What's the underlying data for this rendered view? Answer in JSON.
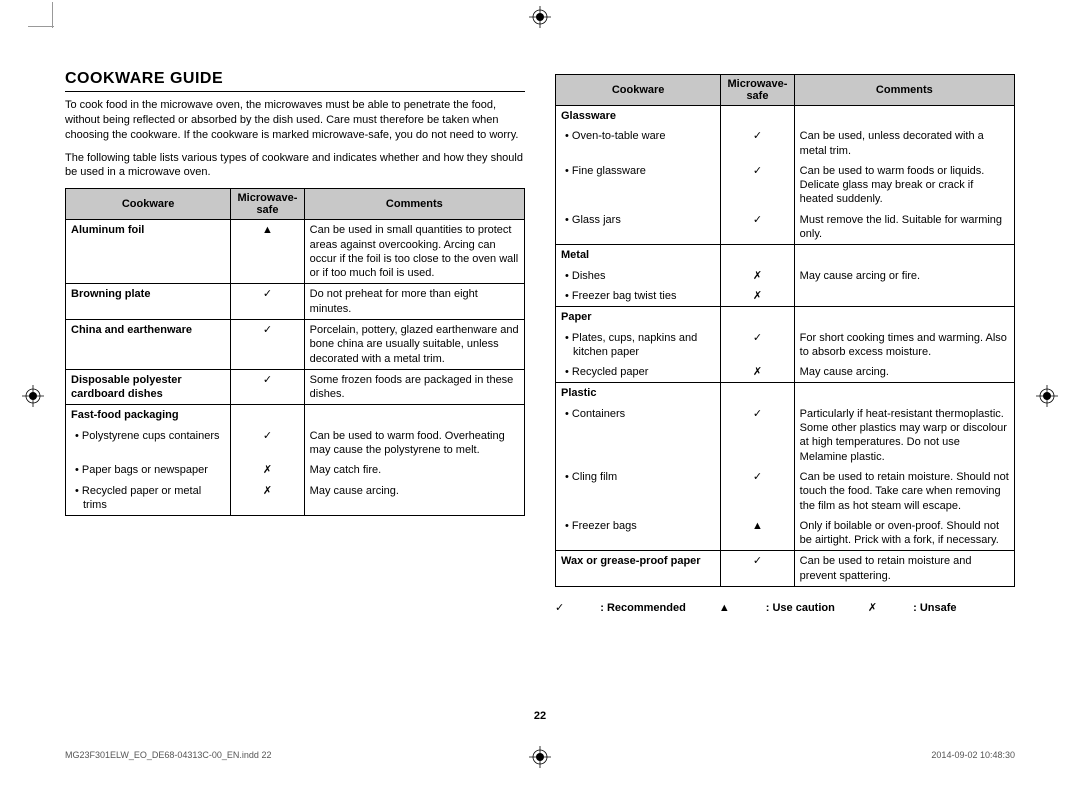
{
  "title": "COOKWARE GUIDE",
  "intro1": "To cook food in the microwave oven, the microwaves must be able to penetrate the food, without being reflected or absorbed by the dish used. Care must therefore be taken when choosing the cookware. If the cookware is marked microwave-safe, you do not need to worry.",
  "intro2": "The following table lists various types of cookware and indicates whether and how they should be used in a microwave oven.",
  "headers": {
    "c1": "Cookware",
    "c2": "Microwave-safe",
    "c3": "Comments"
  },
  "symbols": {
    "rec": "✓",
    "caution": "▲",
    "unsafe": "✗"
  },
  "legend": {
    "rec": ": Recommended",
    "caution": ": Use caution",
    "unsafe": ": Unsafe"
  },
  "left_rows": [
    {
      "name": "Aluminum foil",
      "safe": "▲",
      "comment": "Can be used in small quantities to protect areas against overcooking. Arcing can occur if the foil is too close to the oven wall or if too much foil is used.",
      "bold": true
    },
    {
      "name": "Browning plate",
      "safe": "✓",
      "comment": "Do not preheat for more than eight minutes.",
      "bold": true
    },
    {
      "name": "China and earthenware",
      "safe": "✓",
      "comment": "Porcelain, pottery, glazed earthenware and bone china are usually suitable, unless decorated with a metal trim.",
      "bold": true
    },
    {
      "name": "Disposable polyester cardboard dishes",
      "safe": "✓",
      "comment": "Some frozen foods are packaged in these dishes.",
      "bold": true
    },
    {
      "name": "Fast-food packaging",
      "safe": "",
      "comment": "",
      "bold": true,
      "header": true
    },
    {
      "name": "Polystyrene cups containers",
      "safe": "✓",
      "comment": "Can be used to warm food. Overheating may cause the polystyrene to melt.",
      "sub": true
    },
    {
      "name": "Paper bags or newspaper",
      "safe": "✗",
      "comment": "May catch fire.",
      "sub": true
    },
    {
      "name": "Recycled paper or metal trims",
      "safe": "✗",
      "comment": "May cause arcing.",
      "sub": true
    }
  ],
  "right_rows": [
    {
      "name": "Glassware",
      "safe": "",
      "comment": "",
      "bold": true,
      "header": true
    },
    {
      "name": "Oven-to-table ware",
      "safe": "✓",
      "comment": "Can be used, unless decorated with a metal trim.",
      "sub": true
    },
    {
      "name": "Fine glassware",
      "safe": "✓",
      "comment": "Can be used to warm foods or liquids. Delicate glass may break or crack if heated suddenly.",
      "sub": true
    },
    {
      "name": "Glass jars",
      "safe": "✓",
      "comment": "Must remove the lid. Suitable for warming only.",
      "sub": true
    },
    {
      "name": "Metal",
      "safe": "",
      "comment": "",
      "bold": true,
      "header": true
    },
    {
      "name": "Dishes",
      "safe": "✗",
      "comment": "May cause arcing or fire.",
      "sub": true
    },
    {
      "name": "Freezer bag twist ties",
      "safe": "✗",
      "comment": "",
      "sub": true
    },
    {
      "name": "Paper",
      "safe": "",
      "comment": "",
      "bold": true,
      "header": true
    },
    {
      "name": "Plates, cups, napkins and kitchen paper",
      "safe": "✓",
      "comment": "For short cooking times and warming. Also to absorb excess moisture.",
      "sub": true
    },
    {
      "name": "Recycled paper",
      "safe": "✗",
      "comment": "May cause arcing.",
      "sub": true
    },
    {
      "name": "Plastic",
      "safe": "",
      "comment": "",
      "bold": true,
      "header": true
    },
    {
      "name": "Containers",
      "safe": "✓",
      "comment": "Particularly if heat-resistant thermoplastic. Some other plastics may warp or discolour at high temperatures. Do not use Melamine plastic.",
      "sub": true
    },
    {
      "name": "Cling film",
      "safe": "✓",
      "comment": "Can be used to retain moisture. Should not touch the food. Take care when removing the film as hot steam will escape.",
      "sub": true
    },
    {
      "name": "Freezer bags",
      "safe": "▲",
      "comment": "Only if boilable or oven-proof. Should not be airtight. Prick with a fork, if necessary.",
      "sub": true
    },
    {
      "name": "Wax or grease-proof paper",
      "safe": "✓",
      "comment": "Can be used to retain moisture and prevent spattering.",
      "bold": true
    }
  ],
  "pageNumber": "22",
  "footerLeft": "MG23F301ELW_EO_DE68-04313C-00_EN.indd   22",
  "footerRight": "2014-09-02   10:48:30"
}
